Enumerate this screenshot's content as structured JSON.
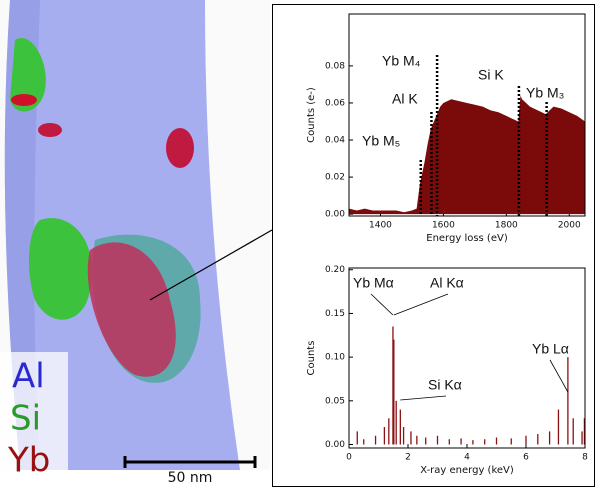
{
  "image_panel": {
    "elements": [
      "Al",
      "Si",
      "Yb"
    ],
    "scale_bar": "50 nm"
  },
  "chart_data": [
    {
      "type": "area",
      "color": "#7b0a0a",
      "x_label": "Energy loss (eV)",
      "y_label": "Counts (e-)",
      "x": [
        1300,
        1325,
        1350,
        1375,
        1400,
        1425,
        1450,
        1475,
        1500,
        1515,
        1525,
        1540,
        1550,
        1560,
        1575,
        1590,
        1600,
        1625,
        1650,
        1675,
        1700,
        1725,
        1750,
        1775,
        1800,
        1825,
        1838,
        1845,
        1850,
        1875,
        1900,
        1925,
        1950,
        1975,
        2000,
        2025,
        2050
      ],
      "values": [
        0.003,
        0.002,
        0.003,
        0.002,
        0.002,
        0.002,
        0.002,
        0.001,
        0.002,
        0.003,
        0.016,
        0.028,
        0.038,
        0.046,
        0.052,
        0.058,
        0.06,
        0.062,
        0.061,
        0.06,
        0.059,
        0.058,
        0.056,
        0.055,
        0.053,
        0.051,
        0.05,
        0.064,
        0.062,
        0.058,
        0.056,
        0.054,
        0.058,
        0.057,
        0.055,
        0.053,
        0.05
      ],
      "xlim": [
        1300,
        2050
      ],
      "xticks": [
        1400,
        1600,
        1800,
        2000
      ],
      "ylim": [
        -0.001,
        0.108
      ],
      "yticks": [
        {
          "value": 0,
          "label": "0.00"
        },
        {
          "value": 0.02,
          "label": "0.02"
        },
        {
          "value": 0.04,
          "label": "0.04"
        },
        {
          "value": 0.06,
          "label": "0.06"
        },
        {
          "value": 0.08,
          "label": "0.08"
        }
      ],
      "annotations": [
        {
          "text": "Yb M₅",
          "x": 1528
        },
        {
          "text": "Al K",
          "x": 1562
        },
        {
          "text": "Yb M₄",
          "x": 1580
        },
        {
          "text": "Si K",
          "x": 1840
        },
        {
          "text": "Yb M₃",
          "x": 1928
        }
      ]
    },
    {
      "type": "spectrum",
      "color": "#8b1010",
      "x_label": "X-ray energy (keV)",
      "y_label": "Counts",
      "x": [
        0.28,
        0.5,
        0.9,
        1.2,
        1.35,
        1.49,
        1.52,
        1.6,
        1.74,
        1.85,
        2.1,
        2.3,
        2.6,
        3.0,
        3.4,
        3.8,
        4.2,
        4.6,
        5.0,
        5.5,
        6.0,
        6.4,
        6.8,
        7.1,
        7.42,
        7.6,
        7.9,
        7.98
      ],
      "values": [
        0.015,
        0.006,
        0.01,
        0.02,
        0.03,
        0.135,
        0.12,
        0.05,
        0.04,
        0.02,
        0.015,
        0.01,
        0.008,
        0.01,
        0.006,
        0.007,
        0.005,
        0.006,
        0.008,
        0.007,
        0.01,
        0.012,
        0.015,
        0.04,
        0.1,
        0.03,
        0.015,
        0.03
      ],
      "xlim": [
        0,
        8
      ],
      "xticks": [
        0,
        2,
        4,
        6,
        8
      ],
      "ylim": [
        -0.004,
        0.202
      ],
      "yticks": [
        {
          "value": 0,
          "label": "0.00"
        },
        {
          "value": 0.05,
          "label": "0.05"
        },
        {
          "value": 0.1,
          "label": "0.10"
        },
        {
          "value": 0.15,
          "label": "0.15"
        },
        {
          "value": 0.2,
          "label": "0.20"
        }
      ],
      "annotations": [
        {
          "text": "Yb Mα",
          "x": 1.49
        },
        {
          "text": "Al Kα",
          "x": 1.52
        },
        {
          "text": "Si Kα",
          "x": 1.74
        },
        {
          "text": "Yb Lα",
          "x": 7.42
        }
      ]
    }
  ]
}
